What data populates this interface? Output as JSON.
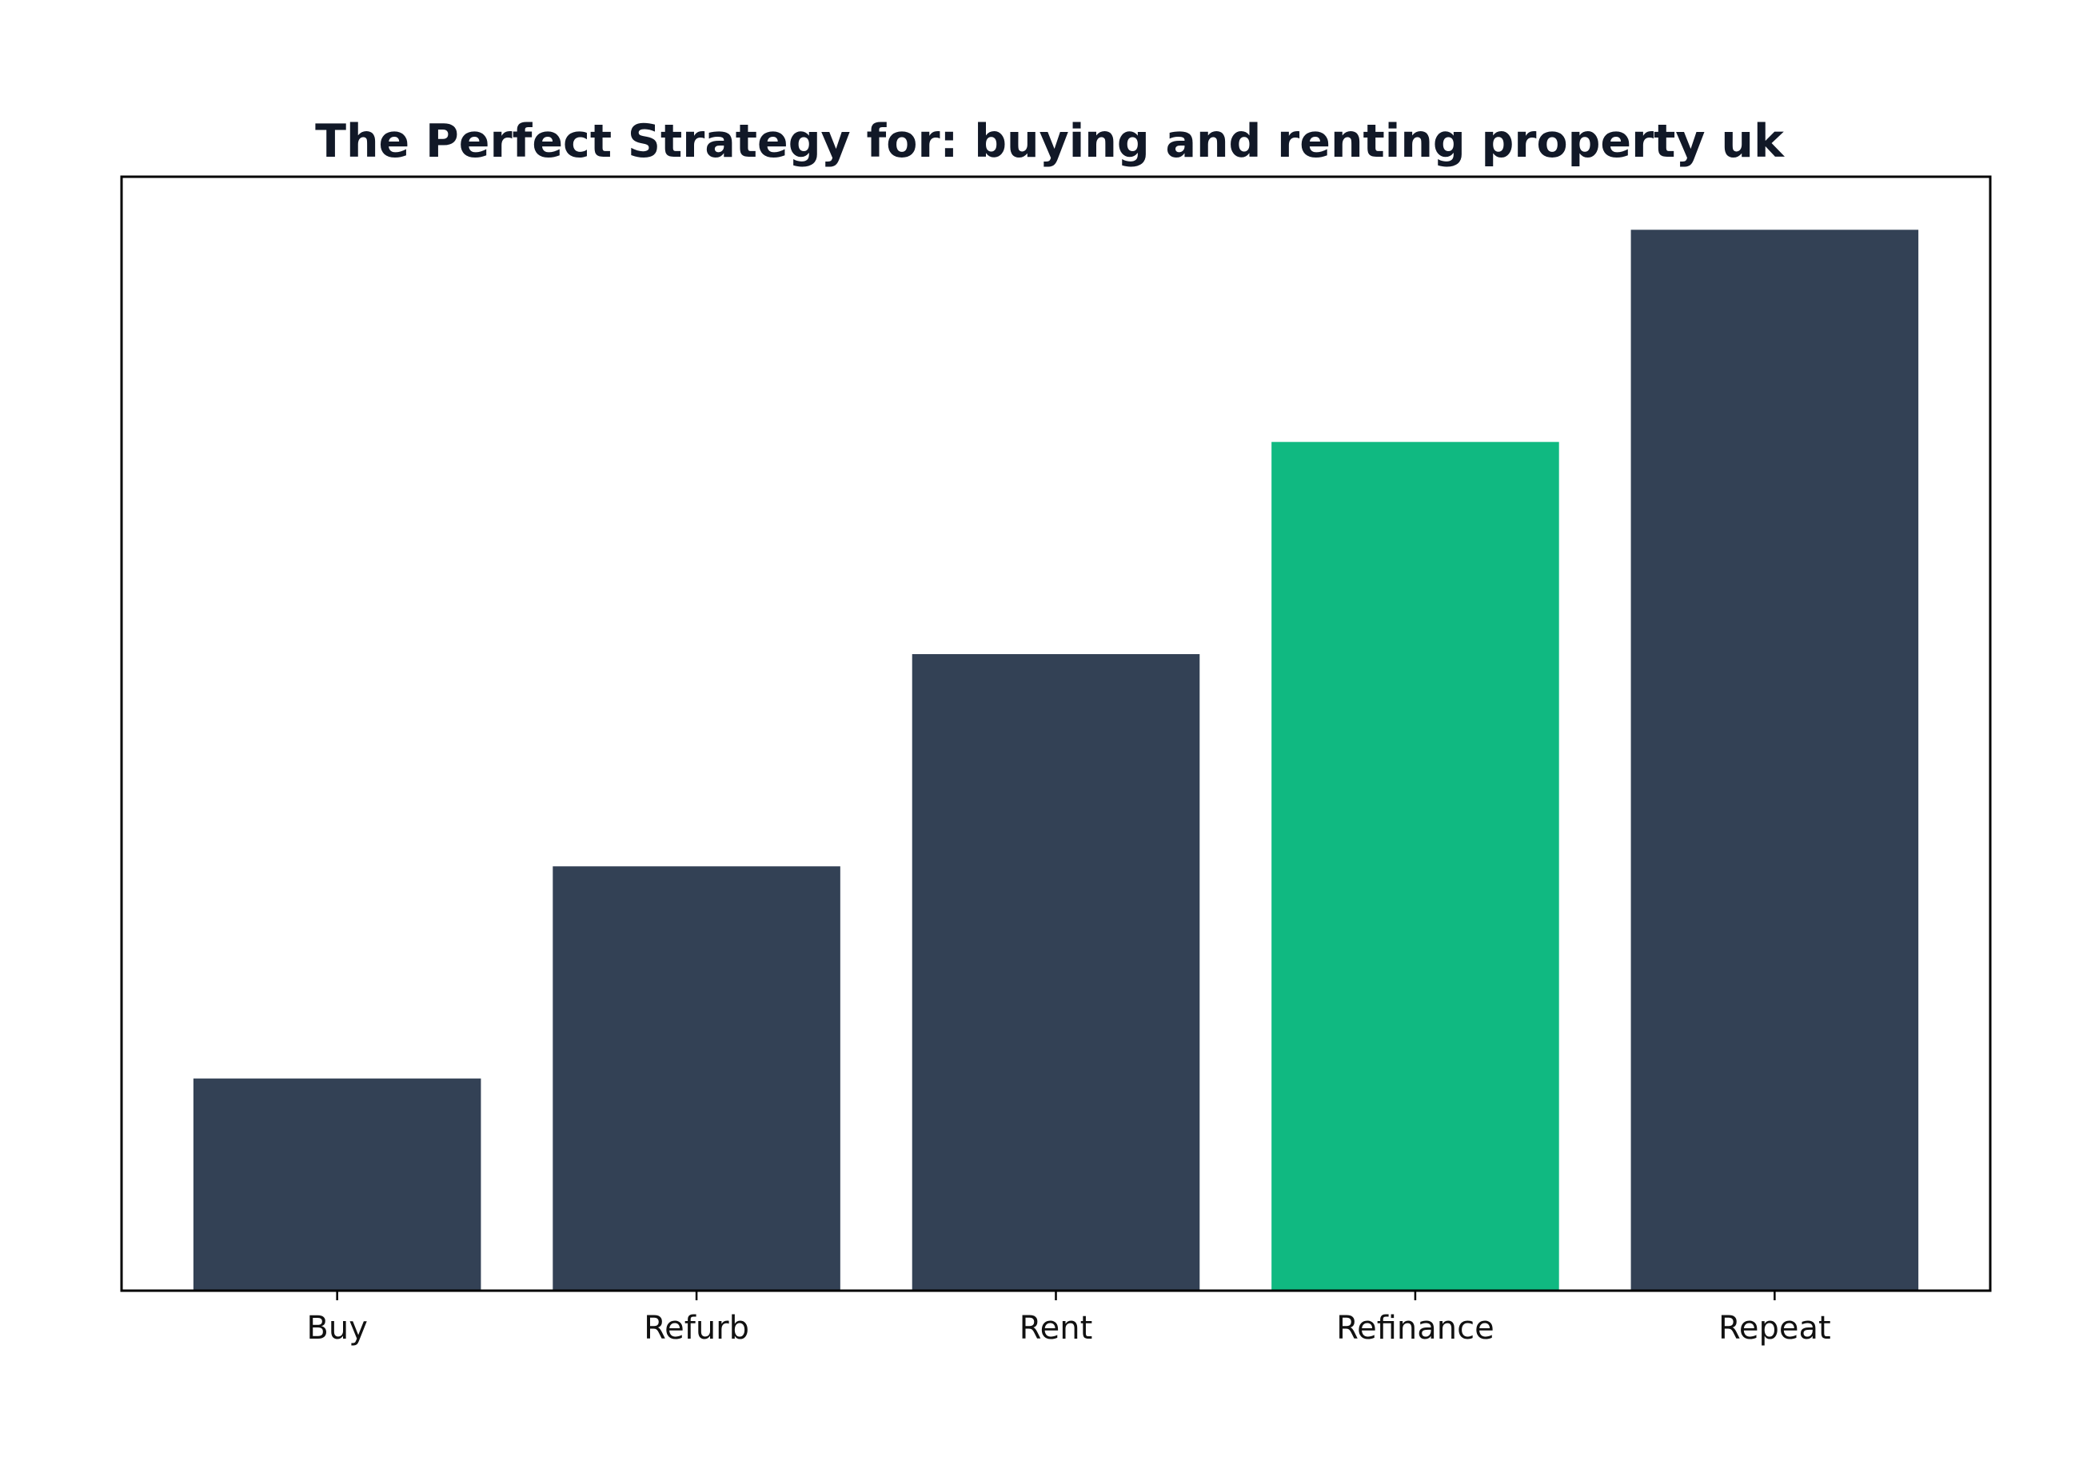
{
  "chart_data": {
    "type": "bar",
    "title": "The Perfect Strategy for: buying and renting property uk",
    "xlabel": "",
    "ylabel": "",
    "categories": [
      "Buy",
      "Refurb",
      "Rent",
      "Refinance",
      "Repeat"
    ],
    "values": [
      1,
      2,
      3,
      4,
      5
    ],
    "ylim": [
      0,
      5.25
    ],
    "grid": false,
    "y_ticks_shown": false,
    "colors": {
      "default": "#334155",
      "highlight": "#10b981",
      "text": "#111827",
      "axis": "#000000"
    },
    "highlight_category": "Refinance"
  }
}
